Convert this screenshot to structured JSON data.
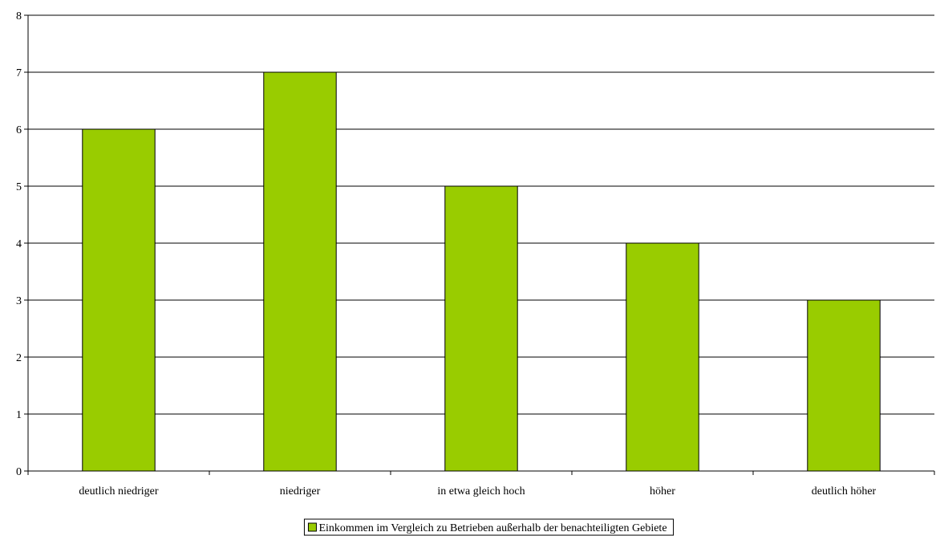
{
  "chart_data": {
    "type": "bar",
    "categories": [
      "deutlich niedriger",
      "niedriger",
      "in etwa gleich hoch",
      "höher",
      "deutlich höher"
    ],
    "series": [
      {
        "name": "Einkommen im Vergleich zu Betrieben außerhalb der benachteiligten Gebiete",
        "values": [
          6,
          7,
          5,
          4,
          3
        ],
        "color": "#99CC00"
      }
    ],
    "title": "",
    "xlabel": "",
    "ylabel": "",
    "ylim": [
      0,
      8
    ],
    "yticks": [
      "0",
      "1",
      "2",
      "3",
      "4",
      "5",
      "6",
      "7",
      "8"
    ],
    "grid": true,
    "legend_position": "bottom"
  }
}
